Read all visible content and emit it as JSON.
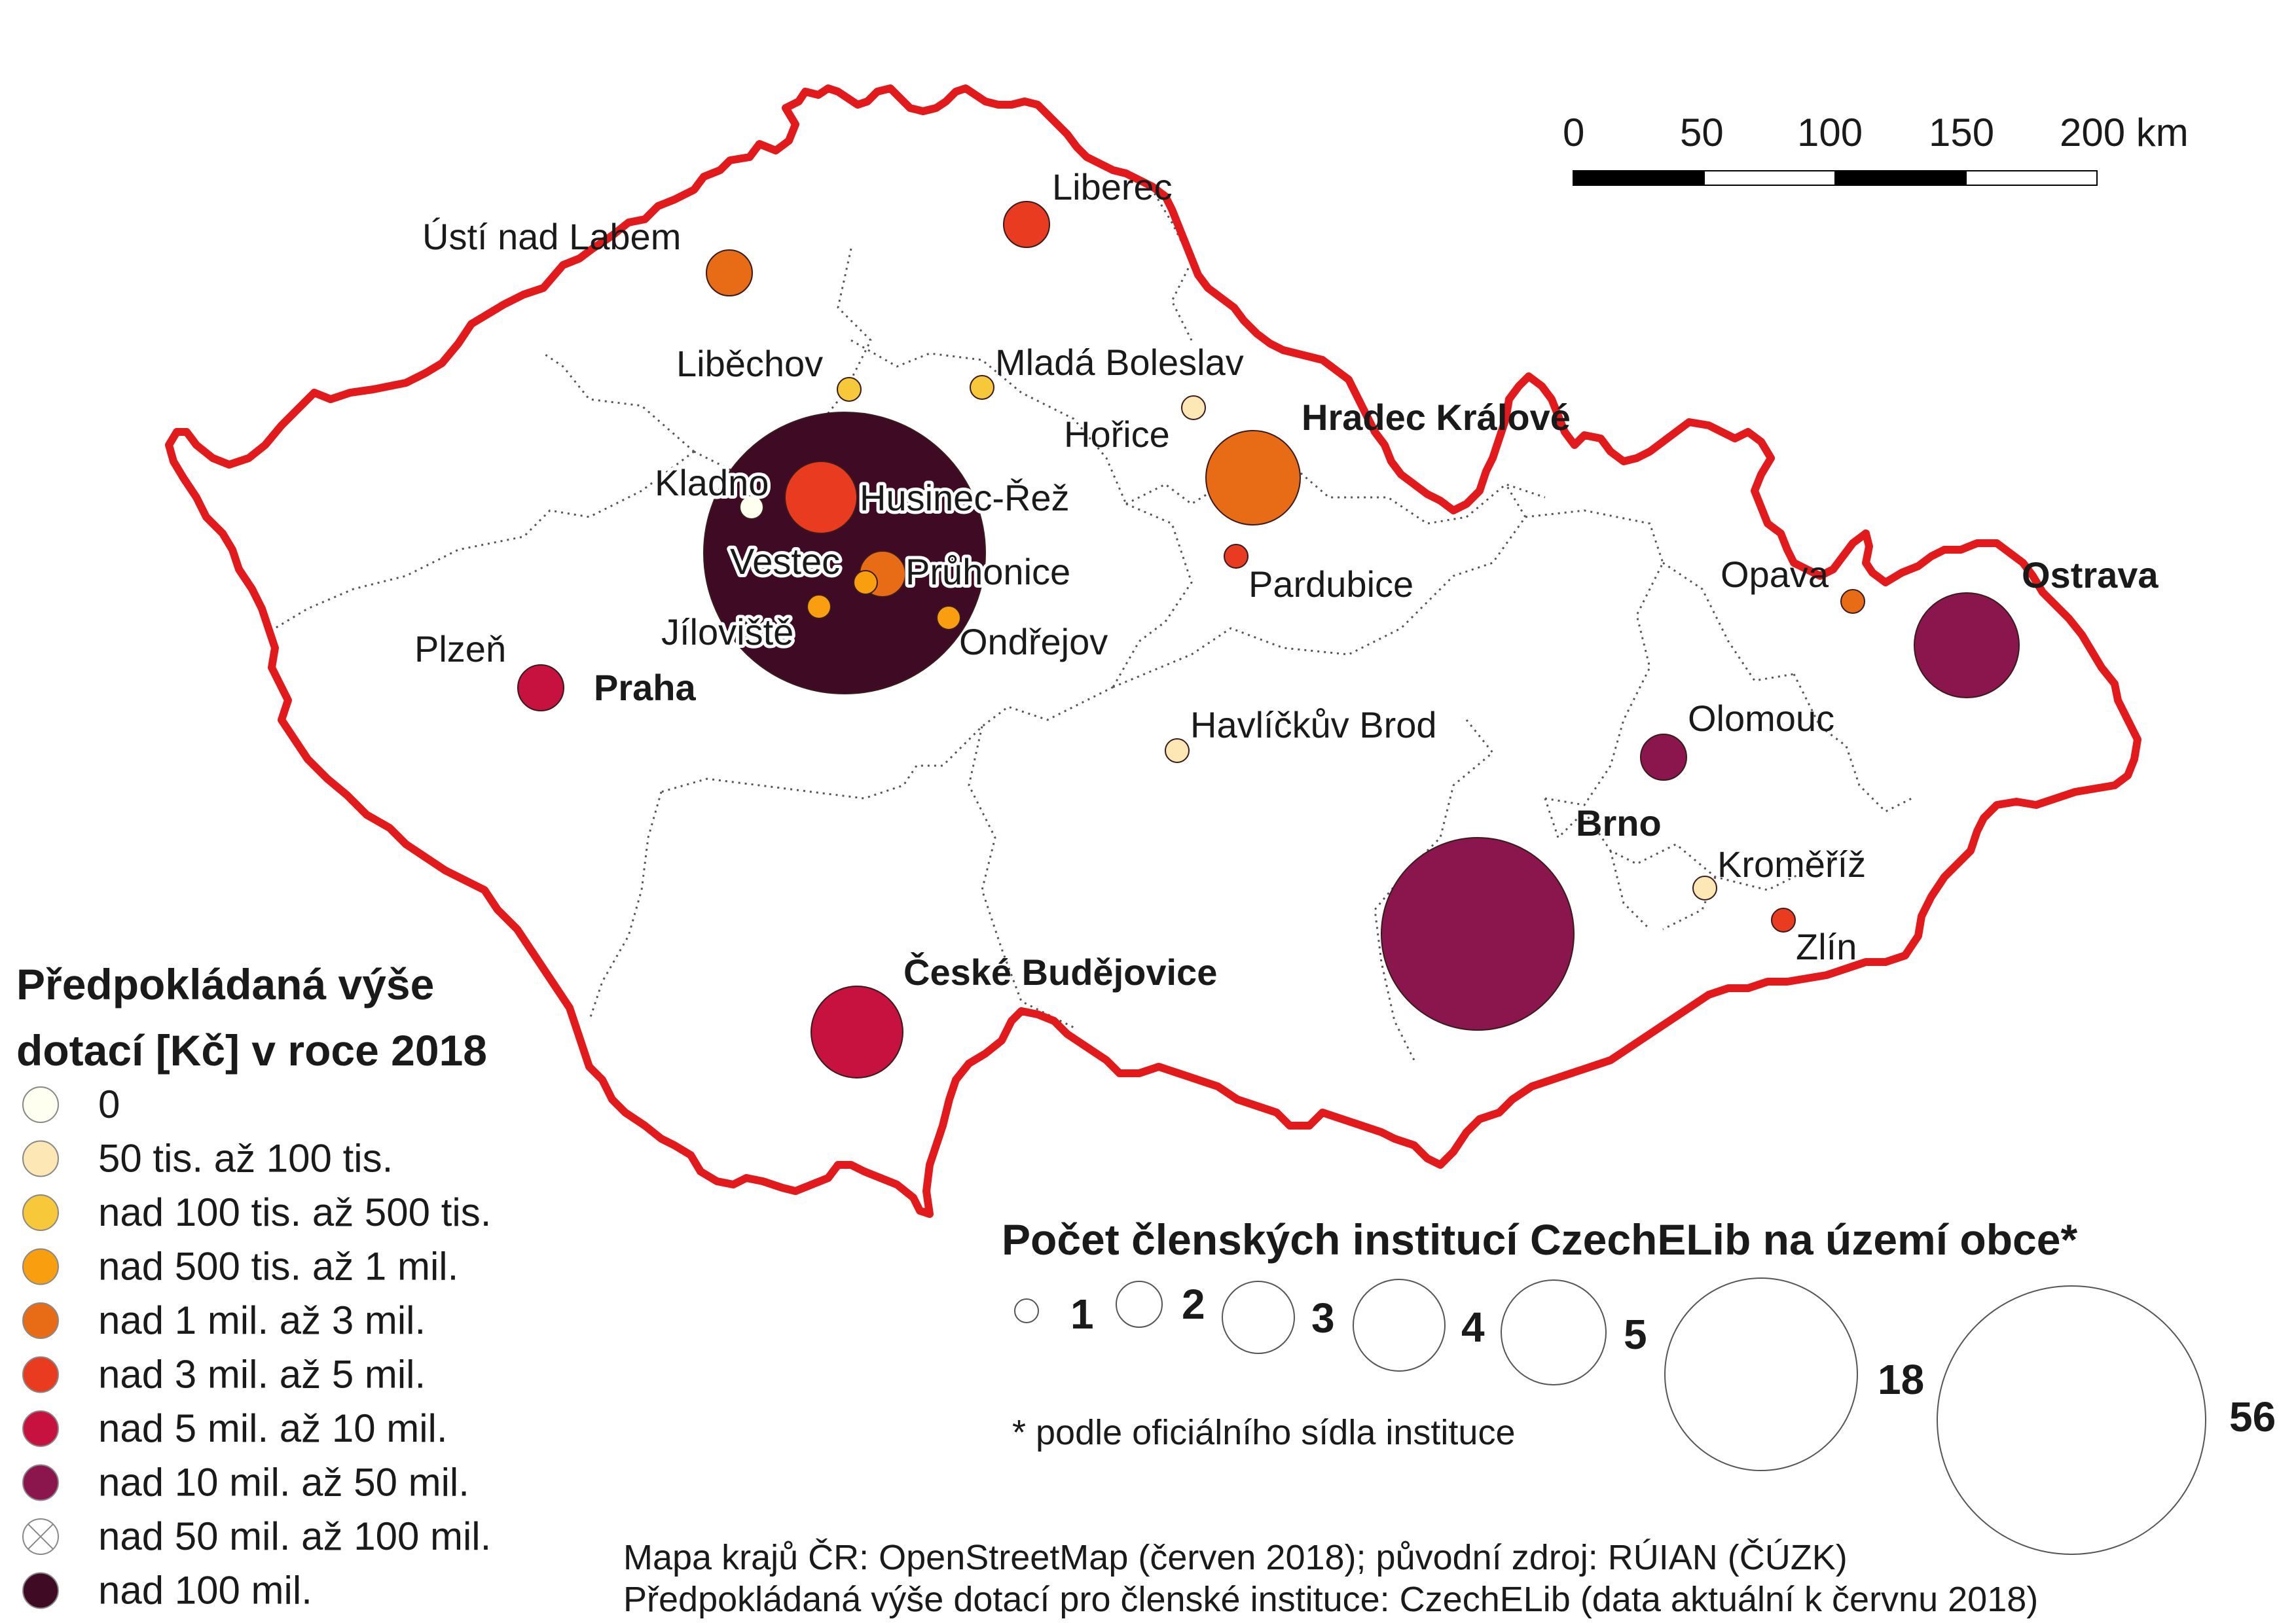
{
  "scalebar": {
    "ticks": [
      "0",
      "50",
      "100",
      "150",
      "200 km"
    ]
  },
  "fill_legend": {
    "title_line1": "Předpokládaná výše",
    "title_line2": "dotací [Kč] v roce 2018",
    "items": [
      {
        "label": "0",
        "color": "#fffff0"
      },
      {
        "label": "50 tis. až 100 tis.",
        "color": "#fde7b4"
      },
      {
        "label": "nad 100 tis. až 500 tis.",
        "color": "#f7c83a"
      },
      {
        "label": "nad 500 tis. až 1 mil.",
        "color": "#f99f0f"
      },
      {
        "label": "nad 1 mil. až 3 mil.",
        "color": "#e86b16"
      },
      {
        "label": "nad 3 mil. až 5 mil.",
        "color": "#e83b20"
      },
      {
        "label": "nad 5 mil. až 10 mil.",
        "color": "#c71240"
      },
      {
        "label": "nad 10 mil. až 50 mil.",
        "color": "#8b164e"
      },
      {
        "label": "nad 50 mil. až 100 mil.",
        "color": "none"
      },
      {
        "label": "nad 100 mil.",
        "color": "#3e0a24"
      }
    ]
  },
  "size_legend": {
    "title": "Počet členských institucí CzechELib na území obce*",
    "counts": [
      "1",
      "2",
      "3",
      "4",
      "5",
      "18",
      "56"
    ],
    "footnote": "* podle oficiálního sídla instituce"
  },
  "sources": {
    "line1": "Mapa krajů ČR: OpenStreetMap (červen 2018); původní zdroj: RÚIAN (ČÚZK)",
    "line2": "Předpokládaná výše dotací pro členské instituce: CzechELib (data aktuální k červnu 2018)"
  },
  "cities": [
    {
      "name": "Ústí nad Labem",
      "bold": false,
      "count": 2,
      "color": "#e86b16"
    },
    {
      "name": "Liberec",
      "bold": false,
      "count": 2,
      "color": "#e83b20"
    },
    {
      "name": "Liběchov",
      "bold": false,
      "count": 1,
      "color": "#f7c83a"
    },
    {
      "name": "Mladá Boleslav",
      "bold": false,
      "count": 1,
      "color": "#f7c83a"
    },
    {
      "name": "Hořice",
      "bold": false,
      "count": 1,
      "color": "#fde7b4"
    },
    {
      "name": "Hradec Králové",
      "bold": true,
      "count": 5,
      "color": "#e86b16"
    },
    {
      "name": "Kladno",
      "bold": false,
      "count": 1,
      "color": "#fffff0"
    },
    {
      "name": "Husinec-Řež",
      "bold": false,
      "count": 3,
      "color": "#e83b20"
    },
    {
      "name": "Vestec",
      "bold": false,
      "count": 1,
      "color": "#f99f0f"
    },
    {
      "name": "Průhonice",
      "bold": false,
      "count": 2,
      "color": "#e86b16"
    },
    {
      "name": "Jíloviště",
      "bold": false,
      "count": 1,
      "color": "#f99f0f"
    },
    {
      "name": "Ondřejov",
      "bold": false,
      "count": 1,
      "color": "#f99f0f"
    },
    {
      "name": "Pardubice",
      "bold": false,
      "count": 1,
      "color": "#e83b20"
    },
    {
      "name": "Plzeň",
      "bold": false,
      "count": 2,
      "color": "#c71240"
    },
    {
      "name": "Praha",
      "bold": true,
      "count": 56,
      "color": "#3e0a24"
    },
    {
      "name": "Havlíčkův Brod",
      "bold": false,
      "count": 1,
      "color": "#fde7b4"
    },
    {
      "name": "Opava",
      "bold": false,
      "count": 1,
      "color": "#e86b16"
    },
    {
      "name": "Ostrava",
      "bold": true,
      "count": 5,
      "color": "#8b164e"
    },
    {
      "name": "Olomouc",
      "bold": false,
      "count": 2,
      "color": "#8b164e"
    },
    {
      "name": "Brno",
      "bold": true,
      "count": 18,
      "color": "#8b164e"
    },
    {
      "name": "Kroměříž",
      "bold": false,
      "count": 1,
      "color": "#fde7b4"
    },
    {
      "name": "Zlín",
      "bold": false,
      "count": 1,
      "color": "#e83b20"
    },
    {
      "name": "České Budějovice",
      "bold": true,
      "count": 5,
      "color": "#c71240"
    }
  ]
}
